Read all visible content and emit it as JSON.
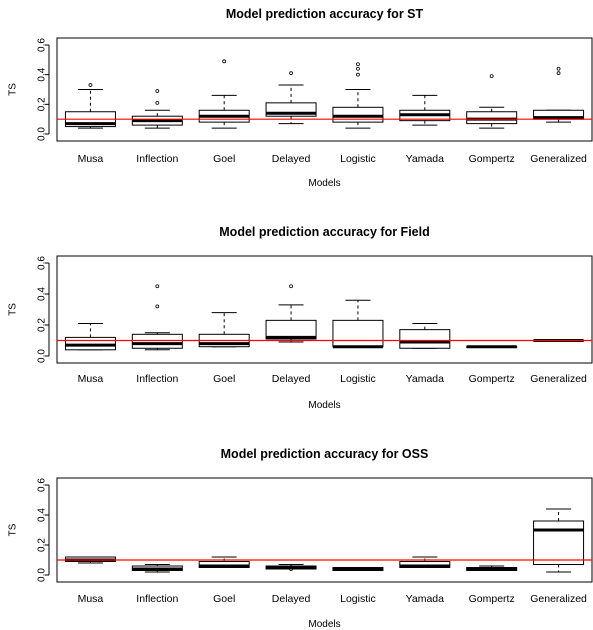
{
  "chart_data": [
    {
      "type": "boxplot",
      "title": "Model prediction accuracy for ST",
      "xlabel": "Models",
      "ylabel": "TS",
      "ylim": [
        0,
        0.6
      ],
      "yticks": [
        0.0,
        0.2,
        0.4,
        0.6
      ],
      "yticklabels": [
        "0.0",
        "0.2",
        "0.4",
        "0.6"
      ],
      "reference_line": 0.1,
      "reference_color": "#ff0000",
      "categories": [
        "Musa",
        "Inflection",
        "Goel",
        "Delayed",
        "Logistic",
        "Yamada",
        "Gompertz",
        "Generalized"
      ],
      "boxes": [
        {
          "whisker_low": 0.04,
          "q1": 0.05,
          "median": 0.07,
          "q3": 0.15,
          "whisker_high": 0.3,
          "outliers": [
            0.33
          ]
        },
        {
          "whisker_low": 0.04,
          "q1": 0.06,
          "median": 0.09,
          "q3": 0.12,
          "whisker_high": 0.16,
          "outliers": [
            0.21,
            0.29
          ]
        },
        {
          "whisker_low": 0.04,
          "q1": 0.08,
          "median": 0.12,
          "q3": 0.16,
          "whisker_high": 0.26,
          "outliers": [
            0.49
          ]
        },
        {
          "whisker_low": 0.07,
          "q1": 0.12,
          "median": 0.14,
          "q3": 0.21,
          "whisker_high": 0.33,
          "outliers": [
            0.41
          ]
        },
        {
          "whisker_low": 0.04,
          "q1": 0.08,
          "median": 0.12,
          "q3": 0.18,
          "whisker_high": 0.3,
          "outliers": [
            0.4,
            0.44,
            0.47
          ]
        },
        {
          "whisker_low": 0.06,
          "q1": 0.09,
          "median": 0.13,
          "q3": 0.16,
          "whisker_high": 0.26,
          "outliers": []
        },
        {
          "whisker_low": 0.04,
          "q1": 0.07,
          "median": 0.1,
          "q3": 0.15,
          "whisker_high": 0.18,
          "outliers": [
            0.39
          ]
        },
        {
          "whisker_low": 0.08,
          "q1": 0.1,
          "median": 0.11,
          "q3": 0.16,
          "whisker_high": 0.16,
          "outliers": [
            0.41,
            0.44
          ]
        }
      ]
    },
    {
      "type": "boxplot",
      "title": "Model prediction accuracy for Field",
      "xlabel": "Models",
      "ylabel": "TS",
      "ylim": [
        0,
        0.6
      ],
      "yticks": [
        0.0,
        0.2,
        0.4,
        0.6
      ],
      "yticklabels": [
        "0.0",
        "0.2",
        "0.4",
        "0.6"
      ],
      "reference_line": 0.1,
      "reference_color": "#ff0000",
      "categories": [
        "Musa",
        "Inflection",
        "Goel",
        "Delayed",
        "Logistic",
        "Yamada",
        "Gompertz",
        "Generalized"
      ],
      "boxes": [
        {
          "whisker_low": 0.04,
          "q1": 0.04,
          "median": 0.07,
          "q3": 0.12,
          "whisker_high": 0.21,
          "outliers": []
        },
        {
          "whisker_low": 0.04,
          "q1": 0.05,
          "median": 0.08,
          "q3": 0.14,
          "whisker_high": 0.15,
          "outliers": [
            0.32,
            0.45
          ]
        },
        {
          "whisker_low": 0.06,
          "q1": 0.06,
          "median": 0.08,
          "q3": 0.14,
          "whisker_high": 0.28,
          "outliers": []
        },
        {
          "whisker_low": 0.09,
          "q1": 0.11,
          "median": 0.12,
          "q3": 0.23,
          "whisker_high": 0.33,
          "outliers": [
            0.45
          ]
        },
        {
          "whisker_low": 0.06,
          "q1": 0.06,
          "median": 0.06,
          "q3": 0.23,
          "whisker_high": 0.36,
          "outliers": []
        },
        {
          "whisker_low": 0.05,
          "q1": 0.05,
          "median": 0.09,
          "q3": 0.17,
          "whisker_high": 0.21,
          "outliers": []
        },
        {
          "whisker_low": 0.06,
          "q1": 0.06,
          "median": 0.06,
          "q3": 0.06,
          "whisker_high": 0.06,
          "outliers": []
        },
        {
          "whisker_low": 0.1,
          "q1": 0.1,
          "median": 0.1,
          "q3": 0.1,
          "whisker_high": 0.1,
          "outliers": []
        }
      ]
    },
    {
      "type": "boxplot",
      "title": "Model prediction accuracy for OSS",
      "xlabel": "Models",
      "ylabel": "TS",
      "ylim": [
        0,
        0.6
      ],
      "yticks": [
        0.0,
        0.2,
        0.4,
        0.6
      ],
      "yticklabels": [
        "0.0",
        "0.2",
        "0.4",
        "0.6"
      ],
      "reference_line": 0.1,
      "reference_color": "#ff0000",
      "categories": [
        "Musa",
        "Inflection",
        "Goel",
        "Delayed",
        "Logistic",
        "Yamada",
        "Gompertz",
        "Generalized"
      ],
      "boxes": [
        {
          "whisker_low": 0.08,
          "q1": 0.09,
          "median": 0.1,
          "q3": 0.12,
          "whisker_high": 0.12,
          "outliers": []
        },
        {
          "whisker_low": 0.02,
          "q1": 0.03,
          "median": 0.04,
          "q3": 0.06,
          "whisker_high": 0.07,
          "outliers": []
        },
        {
          "whisker_low": 0.05,
          "q1": 0.05,
          "median": 0.06,
          "q3": 0.09,
          "whisker_high": 0.12,
          "outliers": []
        },
        {
          "whisker_low": 0.04,
          "q1": 0.04,
          "median": 0.05,
          "q3": 0.06,
          "whisker_high": 0.07,
          "outliers": [
            0.04
          ]
        },
        {
          "whisker_low": 0.03,
          "q1": 0.03,
          "median": 0.04,
          "q3": 0.05,
          "whisker_high": 0.05,
          "outliers": []
        },
        {
          "whisker_low": 0.05,
          "q1": 0.05,
          "median": 0.06,
          "q3": 0.09,
          "whisker_high": 0.12,
          "outliers": []
        },
        {
          "whisker_low": 0.03,
          "q1": 0.03,
          "median": 0.04,
          "q3": 0.05,
          "whisker_high": 0.06,
          "outliers": []
        },
        {
          "whisker_low": 0.02,
          "q1": 0.07,
          "median": 0.3,
          "q3": 0.36,
          "whisker_high": 0.44,
          "outliers": []
        }
      ]
    }
  ]
}
